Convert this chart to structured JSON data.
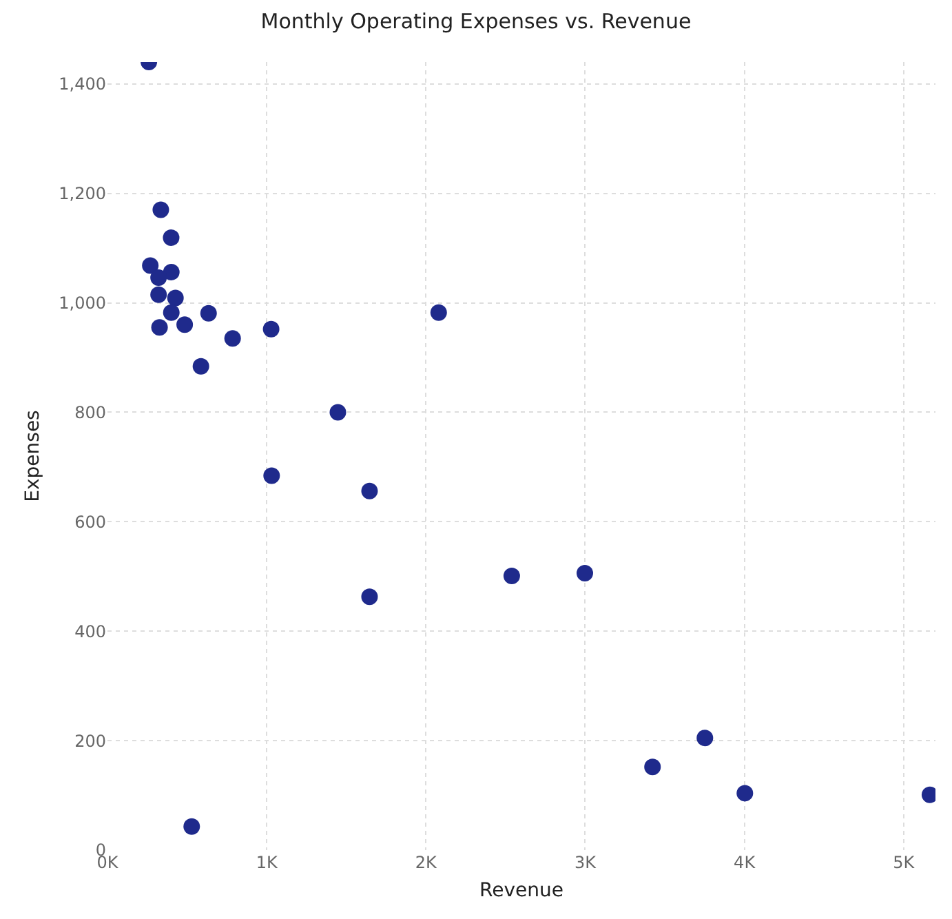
{
  "chart_data": {
    "type": "scatter",
    "title": "Monthly Operating Expenses vs. Revenue",
    "xlabel": "Revenue",
    "ylabel": "Expenses",
    "x": [
      260,
      335,
      400,
      269,
      401,
      321,
      321,
      427,
      401,
      635,
      327,
      485,
      1028,
      786,
      587,
      1447,
      1031,
      1646,
      1646,
      2080,
      2539,
      2998,
      3423,
      3752,
      4003,
      5165,
      529
    ],
    "values": [
      1440,
      1170,
      1119,
      1068,
      1056,
      1046,
      1015,
      1009,
      982,
      981,
      955,
      960,
      952,
      935,
      884,
      800,
      684,
      656,
      463,
      982,
      501,
      506,
      152,
      205,
      104,
      101,
      43
    ],
    "color": "#1f2a8c",
    "marker": "circle",
    "xlim": [
      0,
      5200
    ],
    "xticks": [
      {
        "value": 0,
        "label": "0K"
      },
      {
        "value": 1000,
        "label": "1K"
      },
      {
        "value": 2000,
        "label": "2K"
      },
      {
        "value": 3000,
        "label": "3K"
      },
      {
        "value": 4000,
        "label": "4K"
      },
      {
        "value": 5000,
        "label": "5K"
      }
    ],
    "ylim": [
      0,
      1440
    ],
    "yticks": [
      0,
      200,
      400,
      600,
      800,
      {
        "value": 1000,
        "label": "1,000"
      },
      {
        "value": 1200,
        "label": "1,200"
      },
      {
        "value": 1400,
        "label": "1,400"
      }
    ],
    "grid": true
  }
}
